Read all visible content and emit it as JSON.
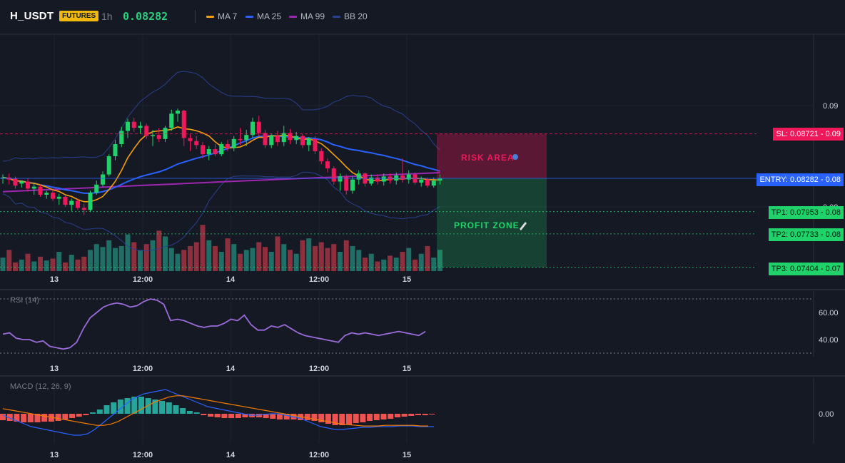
{
  "header": {
    "symbol": "H_USDT",
    "badge": "FUTURES",
    "timeframe": "1h",
    "last_price": "0.08282",
    "indicators": [
      {
        "label": "MA 7",
        "color": "#f59e0b"
      },
      {
        "label": "MA 25",
        "color": "#2962ff"
      },
      {
        "label": "MA 99",
        "color": "#9c27b0"
      },
      {
        "label": "BB 20",
        "color": "#2a3f8f"
      }
    ]
  },
  "levels": {
    "sl": {
      "label": "SL: 0.08721 - 0.09",
      "value": 0.08721,
      "color": "#f0185a"
    },
    "entry": {
      "label": "ENTRY: 0.08282 - 0.08",
      "value": 0.08282,
      "color": "#2962ff"
    },
    "tp1": {
      "label": "TP1: 0.07953 - 0.08",
      "value": 0.07953,
      "color": "#1fd36a"
    },
    "tp2": {
      "label": "TP2: 0.07733 - 0.08",
      "value": 0.07733,
      "color": "#1fd36a"
    },
    "tp3": {
      "label": "TP3: 0.07404 - 0.07",
      "value": 0.07404,
      "color": "#1fd36a"
    }
  },
  "zones": {
    "risk_label": "RISK AREA",
    "profit_label": "PROFIT ZONE"
  },
  "price_axis": {
    "ticks": [
      {
        "value": 0.09,
        "label": "0.09"
      },
      {
        "value": 0.08,
        "label": "0.08"
      }
    ]
  },
  "time_axis": [
    "13",
    "12:00",
    "14",
    "12:00",
    "15"
  ],
  "rsi": {
    "title": "RSI (14)",
    "ticks": [
      "60.00",
      "40.00"
    ],
    "upper": 70,
    "lower": 30
  },
  "macd": {
    "title": "MACD (12, 26, 9)",
    "tick": "0.00"
  },
  "chart_data": {
    "type": "candlestick",
    "candles": [
      [
        0.0828,
        0.0832,
        0.0823,
        0.0829
      ],
      [
        0.0829,
        0.0833,
        0.0822,
        0.0827
      ],
      [
        0.0828,
        0.083,
        0.0818,
        0.0821
      ],
      [
        0.0823,
        0.0826,
        0.0819,
        0.0825
      ],
      [
        0.0825,
        0.0828,
        0.0815,
        0.0818
      ],
      [
        0.0818,
        0.0823,
        0.0812,
        0.082
      ],
      [
        0.082,
        0.0822,
        0.081,
        0.0812
      ],
      [
        0.0812,
        0.0816,
        0.0808,
        0.0814
      ],
      [
        0.0814,
        0.0817,
        0.0806,
        0.0808
      ],
      [
        0.0808,
        0.0813,
        0.0802,
        0.081
      ],
      [
        0.081,
        0.0812,
        0.08,
        0.0802
      ],
      [
        0.0802,
        0.0808,
        0.0796,
        0.0806
      ],
      [
        0.0806,
        0.0808,
        0.0797,
        0.0799
      ],
      [
        0.0799,
        0.0803,
        0.0792,
        0.0797
      ],
      [
        0.0797,
        0.0816,
        0.0795,
        0.0814
      ],
      [
        0.0814,
        0.0826,
        0.0812,
        0.0822
      ],
      [
        0.0822,
        0.0835,
        0.082,
        0.0832
      ],
      [
        0.0832,
        0.0852,
        0.083,
        0.085
      ],
      [
        0.085,
        0.0866,
        0.0846,
        0.0862
      ],
      [
        0.0862,
        0.0879,
        0.0859,
        0.0875
      ],
      [
        0.0875,
        0.0887,
        0.0868,
        0.0884
      ],
      [
        0.0884,
        0.0888,
        0.0874,
        0.0878
      ],
      [
        0.0878,
        0.0884,
        0.0872,
        0.088
      ],
      [
        0.088,
        0.0882,
        0.0867,
        0.087
      ],
      [
        0.087,
        0.0876,
        0.086,
        0.0871
      ],
      [
        0.0871,
        0.0878,
        0.0864,
        0.0867
      ],
      [
        0.0867,
        0.088,
        0.0864,
        0.0878
      ],
      [
        0.0878,
        0.0896,
        0.0875,
        0.0892
      ],
      [
        0.0892,
        0.0897,
        0.0884,
        0.0895
      ],
      [
        0.0895,
        0.0896,
        0.086,
        0.0868
      ],
      [
        0.0868,
        0.0872,
        0.0855,
        0.0865
      ],
      [
        0.0865,
        0.087,
        0.0857,
        0.0861
      ],
      [
        0.0861,
        0.0864,
        0.0848,
        0.0852
      ],
      [
        0.0852,
        0.086,
        0.0846,
        0.0857
      ],
      [
        0.0857,
        0.0862,
        0.085,
        0.0852
      ],
      [
        0.0852,
        0.0864,
        0.085,
        0.0862
      ],
      [
        0.0862,
        0.0866,
        0.0855,
        0.0858
      ],
      [
        0.0858,
        0.087,
        0.0855,
        0.0867
      ],
      [
        0.0867,
        0.0878,
        0.0861,
        0.0866
      ],
      [
        0.0866,
        0.0876,
        0.086,
        0.0871
      ],
      [
        0.0871,
        0.0888,
        0.0868,
        0.0884
      ],
      [
        0.0884,
        0.089,
        0.087,
        0.0873
      ],
      [
        0.0873,
        0.0876,
        0.0858,
        0.0861
      ],
      [
        0.0861,
        0.0872,
        0.0858,
        0.087
      ],
      [
        0.087,
        0.0875,
        0.086,
        0.0864
      ],
      [
        0.0864,
        0.088,
        0.086,
        0.0873
      ],
      [
        0.0873,
        0.0877,
        0.0862,
        0.0866
      ],
      [
        0.0866,
        0.0874,
        0.0862,
        0.087
      ],
      [
        0.087,
        0.0872,
        0.0858,
        0.0861
      ],
      [
        0.0861,
        0.0869,
        0.0855,
        0.0867
      ],
      [
        0.0867,
        0.087,
        0.0852,
        0.0855
      ],
      [
        0.0855,
        0.0858,
        0.0842,
        0.0845
      ],
      [
        0.0845,
        0.0848,
        0.0834,
        0.0838
      ],
      [
        0.0838,
        0.084,
        0.0822,
        0.0825
      ],
      [
        0.0825,
        0.0833,
        0.0816,
        0.083
      ],
      [
        0.083,
        0.0832,
        0.0812,
        0.0816
      ],
      [
        0.0816,
        0.083,
        0.0813,
        0.0827
      ],
      [
        0.0827,
        0.0836,
        0.0822,
        0.0833
      ],
      [
        0.0833,
        0.0834,
        0.082,
        0.0823
      ],
      [
        0.0823,
        0.0832,
        0.0821,
        0.0829
      ],
      [
        0.0829,
        0.0832,
        0.0822,
        0.0825
      ],
      [
        0.0825,
        0.0833,
        0.0821,
        0.083
      ],
      [
        0.083,
        0.0833,
        0.0823,
        0.0826
      ],
      [
        0.0826,
        0.0834,
        0.0822,
        0.0831
      ],
      [
        0.0831,
        0.0848,
        0.0824,
        0.0827
      ],
      [
        0.0827,
        0.0836,
        0.0823,
        0.0832
      ],
      [
        0.0832,
        0.0834,
        0.0822,
        0.0824
      ],
      [
        0.0824,
        0.083,
        0.082,
        0.0827
      ],
      [
        0.0827,
        0.0829,
        0.0819,
        0.0821
      ],
      [
        0.0821,
        0.0829,
        0.0819,
        0.0826
      ],
      [
        0.0826,
        0.0832,
        0.0822,
        0.0828
      ]
    ],
    "volume": [
      14,
      22,
      9,
      12,
      18,
      10,
      15,
      11,
      13,
      20,
      9,
      17,
      12,
      15,
      22,
      28,
      25,
      32,
      24,
      26,
      38,
      30,
      22,
      28,
      32,
      42,
      36,
      24,
      18,
      22,
      26,
      30,
      48,
      32,
      26,
      20,
      34,
      28,
      18,
      22,
      24,
      30,
      25,
      20,
      36,
      28,
      22,
      18,
      32,
      34,
      26,
      30,
      24,
      28,
      20,
      32,
      26,
      22,
      14,
      18,
      10,
      12,
      16,
      14,
      20,
      24,
      12,
      18,
      26,
      14,
      22
    ]
  }
}
